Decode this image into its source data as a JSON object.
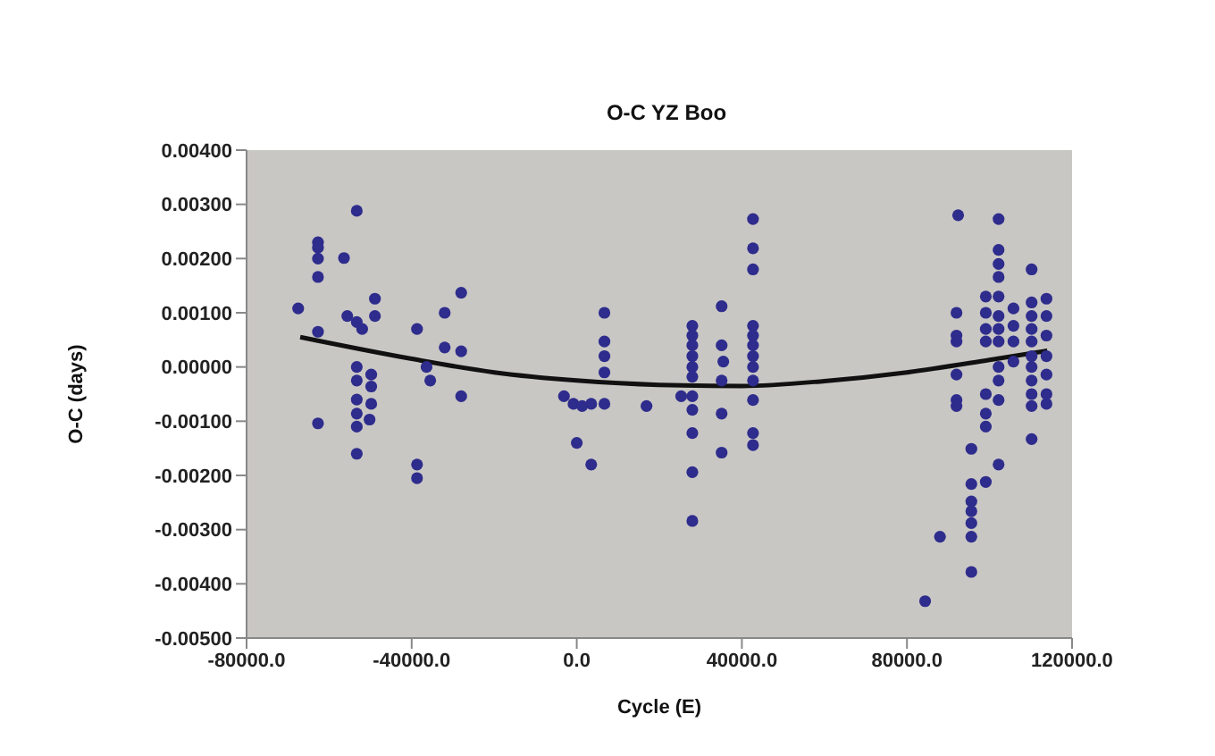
{
  "chart_data": {
    "type": "scatter",
    "title": "O-C YZ Boo",
    "xlabel": "Cycle (E)",
    "ylabel": "O-C (days)",
    "grid": false,
    "legend": false,
    "marker": "circle",
    "xlim": [
      -80000,
      120000
    ],
    "xticks": [
      {
        "value": -80000,
        "label": "-80000.0"
      },
      {
        "value": -40000,
        "label": "-40000.0"
      },
      {
        "value": 0,
        "label": "0.0"
      },
      {
        "value": 40000,
        "label": "40000.0"
      },
      {
        "value": 80000,
        "label": "80000.0"
      },
      {
        "value": 120000,
        "label": "120000.0"
      }
    ],
    "ylim": [
      -0.005,
      0.004
    ],
    "yticks": [
      {
        "value": -0.005,
        "label": "-0.00500"
      },
      {
        "value": -0.004,
        "label": "-0.00400"
      },
      {
        "value": -0.003,
        "label": "-0.00300"
      },
      {
        "value": -0.002,
        "label": "-0.00200"
      },
      {
        "value": -0.001,
        "label": "-0.00100"
      },
      {
        "value": 0,
        "label": "0.00000"
      },
      {
        "value": 0.001,
        "label": "0.00100"
      },
      {
        "value": 0.002,
        "label": "0.00200"
      },
      {
        "value": 0.003,
        "label": "0.00300"
      },
      {
        "value": 0.004,
        "label": "0.00400"
      }
    ],
    "series": [
      {
        "color": "#2e2c8c",
        "x": [
          -67500,
          -62700,
          -62700,
          -62700,
          -62700,
          -62700,
          -62700,
          -53300,
          -56400,
          -55600,
          -53300,
          -52000,
          -48900,
          -48900,
          -53300,
          -53300,
          -53300,
          -53300,
          -53300,
          -53300,
          -49800,
          -49800,
          -49800,
          -50200,
          -38700,
          -38700,
          -38700,
          -36400,
          -35500,
          -32000,
          -32000,
          -28000,
          -28000,
          -28000,
          -3100,
          -800,
          1300,
          3500,
          0,
          3500,
          6700,
          6700,
          6700,
          6700,
          6700,
          16900,
          28000,
          28000,
          28000,
          28000,
          28000,
          28000,
          28000,
          28000,
          28000,
          28000,
          28000,
          25300,
          35100,
          35100,
          35100,
          35100,
          35100,
          35500,
          42700,
          42700,
          42700,
          42700,
          42700,
          42700,
          42700,
          42700,
          42700,
          42700,
          42700,
          42700,
          84400,
          88000,
          92400,
          92000,
          92000,
          92000,
          92000,
          92000,
          92000,
          95600,
          95600,
          95600,
          95600,
          95600,
          95600,
          95600,
          99100,
          99100,
          99100,
          99100,
          99100,
          99100,
          99100,
          99100,
          102200,
          102200,
          102200,
          102200,
          102200,
          102200,
          102200,
          102200,
          102200,
          102200,
          102200,
          102200,
          105800,
          105800,
          105800,
          105800,
          110200,
          110200,
          110200,
          110200,
          110200,
          110200,
          110200,
          110200,
          110200,
          110200,
          110200,
          113800,
          113800,
          113800,
          113800,
          113800,
          113800,
          113800
        ],
        "values": [
          0.00108,
          0.0023,
          0.0022,
          0.002,
          0.00166,
          0.00065,
          -0.00104,
          0.00288,
          0.00201,
          0.00094,
          0.00083,
          0.0007,
          0.00126,
          0.00094,
          0,
          -0.00025,
          -0.0006,
          -0.00086,
          -0.0011,
          -0.0016,
          -0.00014,
          -0.00036,
          -0.00068,
          -0.00097,
          0.0007,
          -0.0018,
          -0.00205,
          0,
          -0.00025,
          0.001,
          0.00036,
          0.00137,
          0.00029,
          -0.00054,
          -0.00054,
          -0.00068,
          -0.00072,
          -0.00068,
          -0.0014,
          -0.0018,
          0.001,
          0.00047,
          0.0002,
          -0.0001,
          -0.00068,
          -0.00072,
          0.00076,
          0.00058,
          0.0004,
          0.0002,
          0,
          -0.00018,
          -0.00054,
          -0.00079,
          -0.00122,
          -0.00194,
          -0.00284,
          -0.00054,
          0.00112,
          0.0004,
          -0.00025,
          -0.00086,
          -0.00158,
          0.0001,
          0.00273,
          0.00219,
          0.0018,
          0.00076,
          0.00058,
          0.0004,
          0.0002,
          0,
          -0.00025,
          -0.00061,
          -0.00122,
          -0.00144,
          -0.00432,
          -0.00313,
          0.0028,
          0.001,
          0.00058,
          0.00047,
          -0.00014,
          -0.00061,
          -0.00072,
          -0.00151,
          -0.00216,
          -0.00248,
          -0.00266,
          -0.00288,
          -0.00313,
          -0.00378,
          0.0013,
          0.001,
          0.0007,
          0.00047,
          -0.0005,
          -0.00086,
          -0.0011,
          -0.00212,
          0.00273,
          0.00216,
          0.0019,
          0.00166,
          0.0013,
          0.00094,
          0.0007,
          0.00047,
          0,
          -0.00025,
          -0.00061,
          -0.0018,
          0.00108,
          0.00076,
          0.00047,
          0.0001,
          0.0018,
          0.00119,
          0.00094,
          0.0007,
          0.00047,
          0.0002,
          0,
          -0.00025,
          -0.0005,
          -0.00072,
          -0.00133,
          0.00126,
          0.00094,
          0.00058,
          0.0002,
          -0.00014,
          -0.0005,
          -0.00068
        ]
      },
      {
        "type": "line",
        "color": "#111111",
        "marker": "none",
        "x": [
          -67000,
          -40000,
          -20000,
          0,
          20000,
          40000,
          60000,
          80000,
          100000,
          114000
        ],
        "values": [
          0.00055,
          0.00015,
          -0.0001,
          -0.00025,
          -0.00033,
          -0.00035,
          -0.00026,
          -0.0001,
          0.00013,
          0.0003
        ]
      }
    ]
  }
}
